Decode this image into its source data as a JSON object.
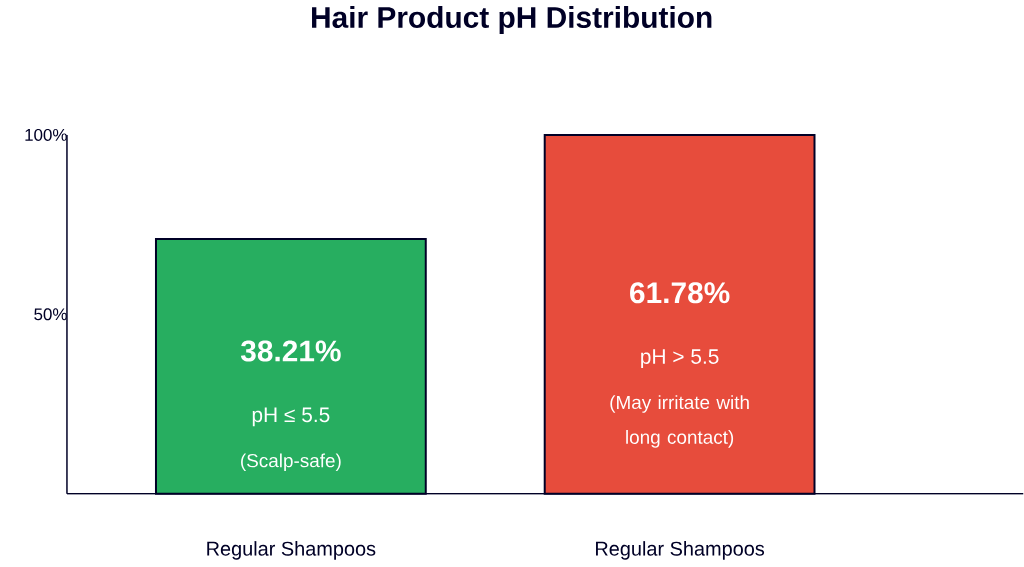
{
  "chart_data": {
    "type": "bar",
    "title": "Hair Product pH Distribution",
    "categories": [
      "Regular Shampoos",
      "Regular Shampoos"
    ],
    "values": [
      71,
      100
    ],
    "colors": [
      "#27ae60",
      "#e74c3c"
    ],
    "annotations": [
      "38.21%",
      "pH ≤ 5.5",
      "(Scalp-safe)",
      "61.78%",
      "pH > 5.5",
      "(May irritate with long contact)"
    ],
    "ylim": [
      0,
      100
    ],
    "yticks": [
      {
        "value": 50,
        "label": "50%"
      },
      {
        "value": 100,
        "label": "100%"
      }
    ]
  }
}
